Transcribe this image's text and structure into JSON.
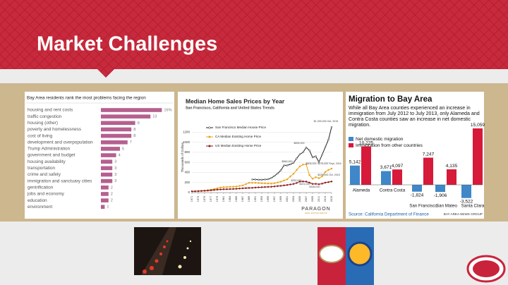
{
  "title": "Market Challenges",
  "chart_data": [
    {
      "type": "hbar",
      "title": "Bay Area residents rank the most problems facing the region",
      "color": "#b5608f",
      "categories": [
        "housing and rent costs",
        "traffic congestion",
        "housing (other)",
        "poverty and homelessness",
        "cost of living",
        "development and overpopulation",
        "Trump Administration",
        "government and budget",
        "housing availability",
        "transportation",
        "crime and safety",
        "immigration and sanctuary cities",
        "gentrification",
        "jobs and economy",
        "education",
        "environment"
      ],
      "values": [
        16,
        13,
        9,
        8,
        8,
        7,
        5,
        4,
        3,
        3,
        3,
        3,
        2,
        2,
        2,
        1
      ],
      "value_labels": [
        "16%",
        "13",
        "9",
        "8",
        "8",
        "7",
        "5",
        "4",
        "3",
        "3",
        "3",
        "3",
        "2",
        "2",
        "2",
        "1"
      ]
    },
    {
      "type": "line",
      "title": "Median Home Sales Prices by Year",
      "subtitle": "San Francisco, California and United States Trends",
      "y_label": "Thousands of Dollars",
      "x": [
        1971,
        1972,
        1973,
        1974,
        1975,
        1976,
        1977,
        1978,
        1979,
        1980,
        1981,
        1982,
        1983,
        1984,
        1985,
        1986,
        1987,
        1988,
        1989,
        1990,
        1991,
        1992,
        1993,
        1994,
        1995,
        1996,
        1997,
        1998,
        1999,
        2000,
        2001,
        2002,
        2003,
        2004,
        2005,
        2006,
        2007,
        2008,
        2009,
        2010,
        2011,
        2012,
        2013,
        2014,
        2015
      ],
      "xlim": [
        1971,
        2015
      ],
      "xticks": [
        1971,
        1973,
        1975,
        1977,
        1979,
        1981,
        1983,
        1985,
        1987,
        1989,
        1991,
        1993,
        1995,
        1997,
        1999,
        2001,
        2003,
        2005,
        2007,
        2009,
        2011,
        2013,
        2015
      ],
      "ylim": [
        0,
        1400
      ],
      "yticks": [
        0,
        200,
        400,
        600,
        800,
        1000,
        1200
      ],
      "grid": true,
      "series": [
        {
          "name": "San Francisco Median House Price",
          "color": "#222222",
          "values": [
            null,
            null,
            null,
            null,
            null,
            null,
            null,
            null,
            null,
            null,
            null,
            null,
            null,
            null,
            null,
            null,
            null,
            null,
            null,
            260,
            260,
            255,
            255,
            260,
            265,
            290,
            330,
            380,
            440,
            540,
            540,
            560,
            590,
            680,
            760,
            800,
            895,
            840,
            700,
            720,
            605,
            750,
            900,
            1050,
            1300
          ]
        },
        {
          "name": "CA Median Existing Home Price",
          "color": "#e8a317",
          "values": [
            25,
            27,
            30,
            35,
            40,
            48,
            58,
            70,
            85,
            100,
            108,
            111,
            114,
            116,
            120,
            133,
            142,
            168,
            195,
            195,
            194,
            190,
            185,
            183,
            180,
            178,
            186,
            201,
            217,
            240,
            262,
            320,
            372,
            450,
            520,
            556,
            560,
            350,
            275,
            305,
            286,
            320,
            410,
            450,
            476
          ]
        },
        {
          "name": "US Median Existing Home Price",
          "color": "#8b1a1a",
          "values": [
            25,
            27,
            29,
            33,
            36,
            40,
            45,
            52,
            58,
            62,
            66,
            67,
            70,
            72,
            75,
            80,
            85,
            89,
            93,
            95,
            100,
            104,
            107,
            110,
            113,
            116,
            122,
            129,
            134,
            143,
            151,
            161,
            172,
            190,
            220,
            222,
            219,
            198,
            172,
            173,
            166,
            177,
            197,
            208,
            220
          ]
        }
      ],
      "annotations": [
        "$1,300,000 Oct. 2015",
        "$895,000",
        "$605,000",
        "$560,000",
        "$476,000 Sept. 2015",
        "$250,000",
        "$221,000",
        "$166,000",
        "$220,000 Oct. 2015"
      ],
      "brand": "PARAGON",
      "brand_sub": "REAL ESTATE GROUP"
    },
    {
      "type": "grouped-bar",
      "title": "Migration to Bay Area",
      "subtitle": "While all Bay Area counties experienced an increase in immigration from July 2012 to July 2013, only Alameda and Contra Costa counties saw an increase in net domestic migration.",
      "categories": [
        "Alameda",
        "Contra Costa",
        "San Francisco",
        "San Mateo",
        "Santa Clara"
      ],
      "series": [
        {
          "name": "Net domestic migration",
          "color": "#3f87c8",
          "values": [
            5142,
            3671,
            -1824,
            -1906,
            -3522
          ],
          "value_labels": [
            "5,142",
            "3,671",
            "-1,824",
            "-1,906",
            "-3,522"
          ]
        },
        {
          "name": "Immigration from other countries",
          "color": "#d7193a",
          "values": [
            10225,
            4097,
            7247,
            4135,
            15059
          ],
          "value_labels": [
            "10,225",
            "4,097",
            "7,247",
            "4,135",
            "15,059"
          ]
        }
      ],
      "source": "Source: California Department of Finance",
      "credit": "BAY AREA NEWS GROUP"
    }
  ]
}
